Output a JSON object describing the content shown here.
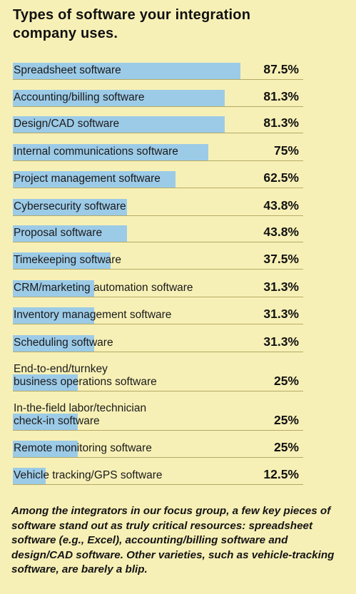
{
  "header": {
    "title": "Types of software your integration company uses."
  },
  "chart_data": {
    "type": "bar",
    "orientation": "horizontal",
    "title": "Types of software your integration company uses.",
    "xlim": [
      0,
      100
    ],
    "grid": false,
    "bar_color": "#9ccbe8",
    "rows": [
      {
        "label": "Spreadsheet software",
        "value": 87.5,
        "value_label": "87.5%"
      },
      {
        "label": "Accounting/billing software",
        "value": 81.3,
        "value_label": "81.3%"
      },
      {
        "label": "Design/CAD software",
        "value": 81.3,
        "value_label": "81.3%"
      },
      {
        "label": "Internal communications software",
        "value": 75,
        "value_label": "75%"
      },
      {
        "label": "Project management software",
        "value": 62.5,
        "value_label": "62.5%"
      },
      {
        "label": "Cybersecurity software",
        "value": 43.8,
        "value_label": "43.8%"
      },
      {
        "label": "Proposal software",
        "value": 43.8,
        "value_label": "43.8%"
      },
      {
        "label": "Timekeeping software",
        "value": 37.5,
        "value_label": "37.5%"
      },
      {
        "label": "CRM/marketing automation software",
        "value": 31.3,
        "value_label": "31.3%"
      },
      {
        "label": "Inventory management software",
        "value": 31.3,
        "value_label": "31.3%"
      },
      {
        "label": "Scheduling software",
        "value": 31.3,
        "value_label": "31.3%"
      },
      {
        "label": "End-to-end/turnkey\nbusiness operations software",
        "value": 25,
        "value_label": "25%"
      },
      {
        "label": "In-the-field labor/technician\ncheck-in software",
        "value": 25,
        "value_label": "25%"
      },
      {
        "label": "Remote monitoring software",
        "value": 25,
        "value_label": "25%"
      },
      {
        "label": "Vehicle tracking/GPS software",
        "value": 12.5,
        "value_label": "12.5%"
      }
    ]
  },
  "caption": {
    "text": "Among the integrators in our focus group, a few key pieces of software stand out as truly critical resources: spreadsheet software (e.g., Excel), accounting/billing software and design/CAD software. Other varieties, such as vehicle-tracking software, are barely a blip."
  },
  "colors": {
    "background": "#f7f0b6",
    "bar": "#9ccbe8",
    "divider": "#b4aa66"
  }
}
